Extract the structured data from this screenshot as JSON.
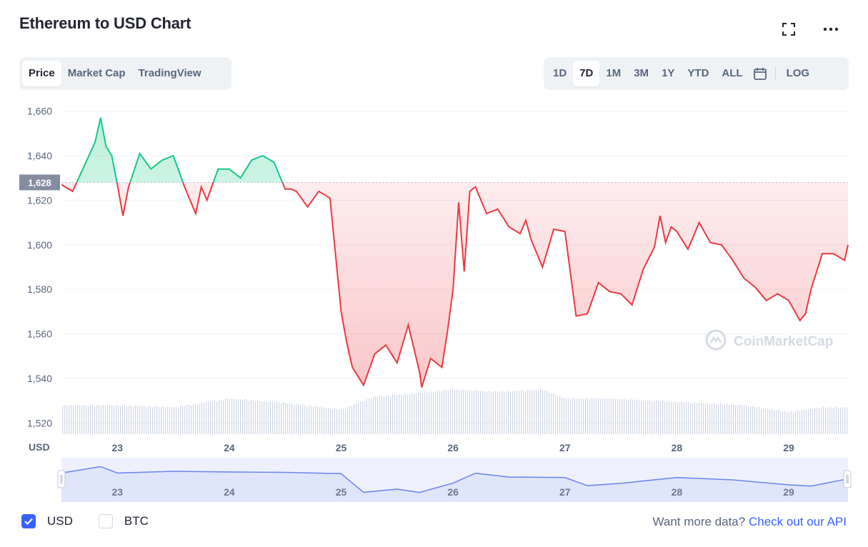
{
  "header": {
    "title": "Ethereum to USD Chart",
    "fullscreen_icon": "expand-icon",
    "more_icon": "more-dots-icon"
  },
  "tabs_left": [
    {
      "label": "Price",
      "active": true
    },
    {
      "label": "Market Cap",
      "active": false
    },
    {
      "label": "TradingView",
      "active": false
    }
  ],
  "tabs_right": [
    {
      "label": "1D",
      "active": false
    },
    {
      "label": "7D",
      "active": true
    },
    {
      "label": "1M",
      "active": false
    },
    {
      "label": "3M",
      "active": false
    },
    {
      "label": "1Y",
      "active": false
    },
    {
      "label": "YTD",
      "active": false
    },
    {
      "label": "ALL",
      "active": false
    }
  ],
  "calendar_icon": "calendar-icon",
  "log_label": "LOG",
  "watermark": "CoinMarketCap",
  "footer": {
    "currencies": [
      {
        "label": "USD",
        "checked": true
      },
      {
        "label": "BTC",
        "checked": false
      }
    ],
    "api_prefix": "Want more data?",
    "api_link": "Check out our API"
  },
  "colors": {
    "up": "#16c784",
    "down": "#ea3943",
    "accent": "#3861fb",
    "navigator_line": "#6f88ef",
    "volume": "#cfd6e4"
  },
  "chart_data": {
    "type": "area",
    "currency_label": "USD",
    "reference_price": 1628,
    "reference_label": "1,628",
    "ylim": [
      1515,
      1665
    ],
    "yticks": [
      1660,
      1640,
      1620,
      1600,
      1580,
      1560,
      1540,
      1520
    ],
    "ytick_labels": [
      "1,660",
      "1,640",
      "1,620",
      "1,600",
      "1,580",
      "1,560",
      "1,540",
      "1,520"
    ],
    "xlim": [
      22.5,
      29.53
    ],
    "xticks": [
      23,
      24,
      25,
      26,
      27,
      28,
      29
    ],
    "xtick_labels": [
      "23",
      "24",
      "25",
      "26",
      "27",
      "28",
      "29"
    ],
    "grid": true,
    "price": {
      "x": [
        22.5,
        22.6,
        22.7,
        22.8,
        22.85,
        22.9,
        22.95,
        23.0,
        23.05,
        23.1,
        23.2,
        23.3,
        23.4,
        23.5,
        23.6,
        23.7,
        23.75,
        23.8,
        23.9,
        24.0,
        24.1,
        24.2,
        24.3,
        24.4,
        24.5,
        24.55,
        24.6,
        24.7,
        24.8,
        24.9,
        25.0,
        25.05,
        25.1,
        25.2,
        25.3,
        25.4,
        25.5,
        25.6,
        25.7,
        25.72,
        25.8,
        25.9,
        25.95,
        26.0,
        26.05,
        26.1,
        26.15,
        26.2,
        26.3,
        26.4,
        26.5,
        26.6,
        26.65,
        26.7,
        26.8,
        26.9,
        27.0,
        27.1,
        27.2,
        27.3,
        27.4,
        27.5,
        27.6,
        27.7,
        27.8,
        27.85,
        27.9,
        27.95,
        28.0,
        28.1,
        28.2,
        28.3,
        28.4,
        28.5,
        28.6,
        28.7,
        28.8,
        28.9,
        29.0,
        29.1,
        29.15,
        29.2,
        29.3,
        29.4,
        29.5,
        29.53
      ],
      "y": [
        1627,
        1624,
        1635,
        1646,
        1657,
        1644,
        1640,
        1627,
        1613,
        1626,
        1641,
        1634,
        1638,
        1640,
        1626,
        1614,
        1626,
        1620,
        1634,
        1634,
        1630,
        1638,
        1640,
        1637,
        1625,
        1625,
        1624,
        1617,
        1624,
        1621,
        1570,
        1556,
        1545,
        1537,
        1551,
        1555,
        1547,
        1564,
        1543,
        1536,
        1549,
        1545,
        1561,
        1580,
        1619,
        1588,
        1624,
        1626,
        1614,
        1616,
        1608,
        1605,
        1611,
        1602,
        1590,
        1607,
        1606,
        1568,
        1569,
        1583,
        1579,
        1578,
        1573,
        1589,
        1599,
        1613,
        1601,
        1608,
        1606,
        1598,
        1610,
        1601,
        1600,
        1593,
        1585,
        1581,
        1575,
        1578,
        1575,
        1566,
        1569,
        1580,
        1596,
        1596,
        1593,
        1600
      ]
    },
    "volume": {
      "x": [
        22.5,
        23.0,
        23.5,
        24.0,
        24.5,
        25.0,
        25.3,
        25.6,
        26.0,
        26.4,
        26.8,
        27.0,
        27.4,
        27.8,
        28.2,
        28.6,
        29.0,
        29.3,
        29.53
      ],
      "y": [
        1528,
        1528,
        1527,
        1531,
        1529,
        1526,
        1532,
        1533,
        1535,
        1534,
        1535,
        1531,
        1531,
        1530,
        1529,
        1528,
        1525,
        1527,
        1527
      ]
    },
    "navigator": {
      "x": [
        22.5,
        22.85,
        23.0,
        23.5,
        24.0,
        24.5,
        25.0,
        25.2,
        25.5,
        25.7,
        26.0,
        26.2,
        26.5,
        27.0,
        27.2,
        27.5,
        28.0,
        28.5,
        29.0,
        29.2,
        29.53
      ],
      "y": [
        1627,
        1657,
        1627,
        1635,
        1632,
        1630,
        1624,
        1537,
        1552,
        1536,
        1580,
        1626,
        1608,
        1606,
        1568,
        1579,
        1606,
        1595,
        1572,
        1566,
        1600
      ]
    }
  }
}
